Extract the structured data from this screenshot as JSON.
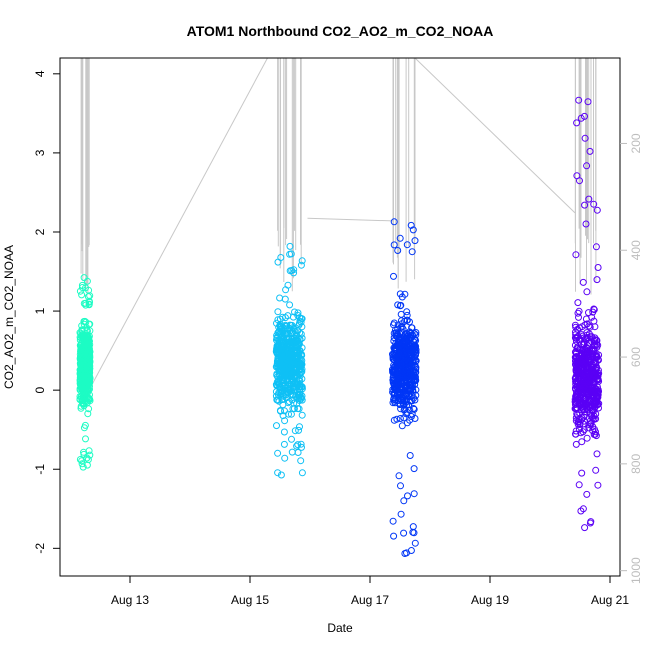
{
  "chart_data": {
    "type": "scatter",
    "title": "ATOM1 Northbound CO2_AO2_m_CO2_NOAA",
    "xlabel": "Date",
    "ylabel": "CO2_AO2_m_CO2_NOAA",
    "x_unit": "date",
    "xlim": [
      "2016-08-11T20:00",
      "2016-08-21T04:00"
    ],
    "ylim": [
      -2.35,
      4.2
    ],
    "x_ticks": [
      {
        "value": "2016-08-13",
        "label": "Aug 13"
      },
      {
        "value": "2016-08-15",
        "label": "Aug 15"
      },
      {
        "value": "2016-08-17",
        "label": "Aug 17"
      },
      {
        "value": "2016-08-19",
        "label": "Aug 19"
      },
      {
        "value": "2016-08-21",
        "label": "Aug 21"
      }
    ],
    "y_ticks": [
      -2,
      -1,
      0,
      1,
      2,
      3,
      4
    ],
    "right_axis": {
      "ticks": [
        200,
        400,
        600,
        800,
        1000
      ],
      "range": [
        40,
        1010
      ],
      "color": "#bdbdbd",
      "reversed": true
    },
    "grid": false,
    "legend": "none",
    "series": [
      {
        "color": "#1dfcc4",
        "x_range": [
          "2016-08-12T04:00",
          "2016-08-12T08:00"
        ],
        "y_core": [
          -0.45,
          1.05
        ],
        "y_extent": [
          -0.98,
          1.45
        ]
      },
      {
        "color": "#0fc0f5",
        "x_range": [
          "2016-08-15T10:30",
          "2016-08-15T21:00"
        ],
        "y_core": [
          -0.5,
          1.25
        ],
        "y_extent": [
          -1.15,
          1.88
        ]
      },
      {
        "color": "#0036f6",
        "x_range": [
          "2016-08-17T09:00",
          "2016-08-17T18:30"
        ],
        "y_core": [
          -0.6,
          1.2
        ],
        "y_extent": [
          -2.1,
          2.35
        ]
      },
      {
        "color": "#5a00f5",
        "x_range": [
          "2016-08-20T10:00",
          "2016-08-20T19:30"
        ],
        "y_core": [
          -0.9,
          1.2
        ],
        "y_extent": [
          -1.85,
          3.97
        ]
      }
    ],
    "secondary_series": {
      "name": "",
      "color": "#c8c8c8",
      "segments": [
        {
          "x": [
            "2016-08-12T05:30",
            "2016-08-15T07:00"
          ],
          "y2": [
            680,
            40
          ]
        },
        {
          "x": [
            "2016-08-15T23:00",
            "2016-08-17T09:00"
          ],
          "y2": [
            340,
            345
          ]
        },
        {
          "x": [
            "2016-08-17T18:00",
            "2016-08-20T10:00"
          ],
          "y2": [
            40,
            330
          ]
        }
      ]
    }
  }
}
